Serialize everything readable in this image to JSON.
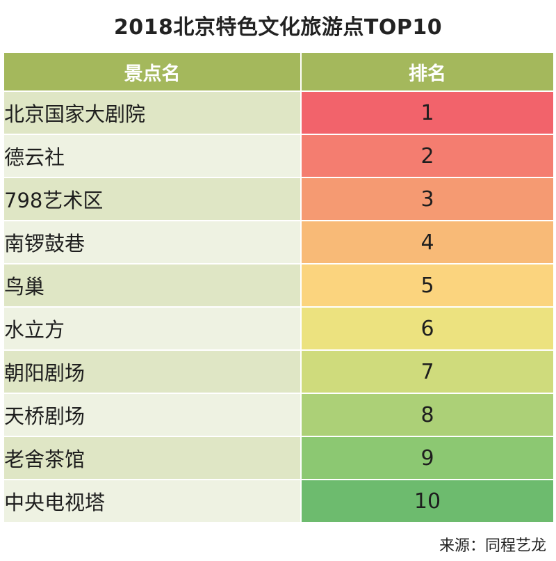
{
  "chart_data": {
    "type": "table",
    "title": "2018北京特色文化旅游点TOP10",
    "columns": [
      "景点名",
      "排名"
    ],
    "rows": [
      {
        "name": "北京国家大剧院",
        "rank": "1"
      },
      {
        "name": "德云社",
        "rank": "2"
      },
      {
        "name": "798艺术区",
        "rank": "3"
      },
      {
        "name": "南锣鼓巷",
        "rank": "4"
      },
      {
        "name": "鸟巢",
        "rank": "5"
      },
      {
        "name": "水立方",
        "rank": "6"
      },
      {
        "name": "朝阳剧场",
        "rank": "7"
      },
      {
        "name": "天桥剧场",
        "rank": "8"
      },
      {
        "name": "老舍茶馆",
        "rank": "9"
      },
      {
        "name": "中央电视塔",
        "rank": "10"
      }
    ],
    "rank_colors": [
      "#f2636b",
      "#f47d70",
      "#f59a72",
      "#f8ba77",
      "#fbd47e",
      "#ece27f",
      "#cfdb7c",
      "#acd077",
      "#8cc872",
      "#6dbb6e"
    ],
    "source": "来源：同程艺龙"
  }
}
